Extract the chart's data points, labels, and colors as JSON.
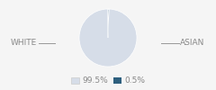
{
  "slices": [
    99.5,
    0.5
  ],
  "labels": [
    "WHITE",
    "ASIAN"
  ],
  "colors": [
    "#d6dde8",
    "#2e5f7e"
  ],
  "legend_colors": [
    "#d6dde8",
    "#2e5f7e"
  ],
  "legend_labels": [
    "99.5%",
    "0.5%"
  ],
  "background_color": "#f5f5f5",
  "startangle": 90,
  "line_color": "#999999",
  "text_color": "#888888",
  "font_size": 6.5
}
